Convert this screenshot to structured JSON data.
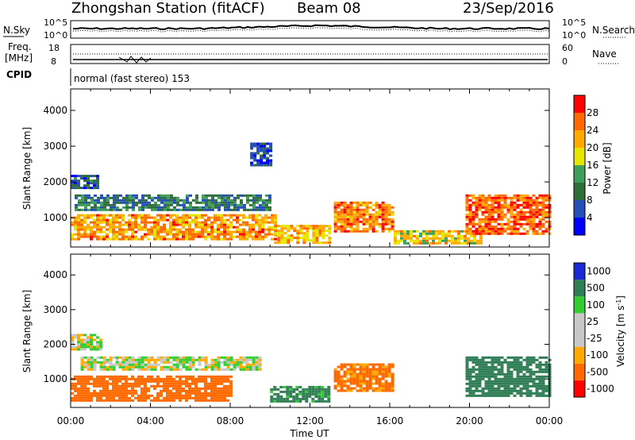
{
  "header": {
    "station": "Zhongshan Station (fitACF)",
    "beam": "Beam 08",
    "date": "23/Sep/2016"
  },
  "sky_panel": {
    "left_label": "N.Sky",
    "right_label": "N.Search",
    "left_ticks": [
      "10^5",
      "10^0"
    ],
    "right_ticks": [
      "10^5",
      "10^0"
    ]
  },
  "freq_panel": {
    "left_label_1": "Freq.",
    "left_label_2": "[MHz]",
    "right_label": "Nave",
    "left_ticks": [
      "18",
      "8"
    ],
    "right_ticks": [
      "60",
      "0"
    ]
  },
  "cpid": {
    "label": "CPID",
    "value": "normal (fast stereo) 153"
  },
  "colors": {
    "power_scale": [
      "#0000ff",
      "#234fb6",
      "#2f6e3a",
      "#3f9e5a",
      "#e6e600",
      "#ffaa00",
      "#ff6a00",
      "#ff0000"
    ],
    "velocity_scale": [
      "#ff0000",
      "#ff6a00",
      "#ffaa00",
      "#c8c8c8",
      "#c8c8c8",
      "#33cc33",
      "#2f7e55",
      "#1a2bd6"
    ]
  },
  "chart_data": [
    {
      "type": "heatmap",
      "title": "",
      "xlabel": "Time UT",
      "ylabel": "Slant Range [km]",
      "xlim": [
        0,
        24
      ],
      "ylim": [
        180,
        4600
      ],
      "x_ticks": [
        "00:00",
        "04:00",
        "08:00",
        "12:00",
        "16:00",
        "20:00",
        "00:00"
      ],
      "y_ticks": [
        "1000",
        "2000",
        "3000",
        "4000"
      ],
      "colorbar": {
        "label": "Power [dB]",
        "ticks": [
          "4",
          "8",
          "12",
          "16",
          "20",
          "24",
          "28"
        ],
        "range": [
          0,
          30
        ]
      },
      "regions": [
        {
          "x": [
            0,
            10.2
          ],
          "y": [
            400,
            1100
          ],
          "value": 22
        },
        {
          "x": [
            0,
            1.4
          ],
          "y": [
            1850,
            2200
          ],
          "value": 7
        },
        {
          "x": [
            0.2,
            10
          ],
          "y": [
            1250,
            1650
          ],
          "value": 9
        },
        {
          "x": [
            10.2,
            13
          ],
          "y": [
            300,
            800
          ],
          "value": 20
        },
        {
          "x": [
            13.2,
            16.2
          ],
          "y": [
            650,
            1450
          ],
          "value": 23
        },
        {
          "x": [
            16.2,
            20.5
          ],
          "y": [
            300,
            650
          ],
          "value": 18
        },
        {
          "x": [
            19.8,
            24
          ],
          "y": [
            550,
            1650
          ],
          "value": 25
        },
        {
          "x": [
            9,
            10
          ],
          "y": [
            2500,
            3100
          ],
          "value": 6
        }
      ]
    },
    {
      "type": "heatmap",
      "title": "",
      "xlabel": "Time UT",
      "ylabel": "Slant Range [km]",
      "xlim": [
        0,
        24
      ],
      "ylim": [
        180,
        4600
      ],
      "x_ticks": [
        "00:00",
        "04:00",
        "08:00",
        "12:00",
        "16:00",
        "20:00",
        "00:00"
      ],
      "y_ticks": [
        "1000",
        "2000",
        "3000",
        "4000"
      ],
      "colorbar": {
        "label": "Velocity [m s^-1]",
        "ticks": [
          "1000",
          "500",
          "100",
          "25",
          "-25",
          "-100",
          "-500",
          "-1000"
        ]
      },
      "regions": [
        {
          "x": [
            0,
            8
          ],
          "y": [
            400,
            1100
          ],
          "value": -200
        },
        {
          "x": [
            0,
            1.5
          ],
          "y": [
            1850,
            2300
          ],
          "value": 0
        },
        {
          "x": [
            0.5,
            9.5
          ],
          "y": [
            1250,
            1650
          ],
          "value": 10
        },
        {
          "x": [
            10,
            13
          ],
          "y": [
            350,
            800
          ],
          "value": 150
        },
        {
          "x": [
            13.2,
            16.2
          ],
          "y": [
            650,
            1450
          ],
          "value": -150
        },
        {
          "x": [
            19.8,
            24
          ],
          "y": [
            550,
            1650
          ],
          "value": 300
        }
      ]
    }
  ]
}
